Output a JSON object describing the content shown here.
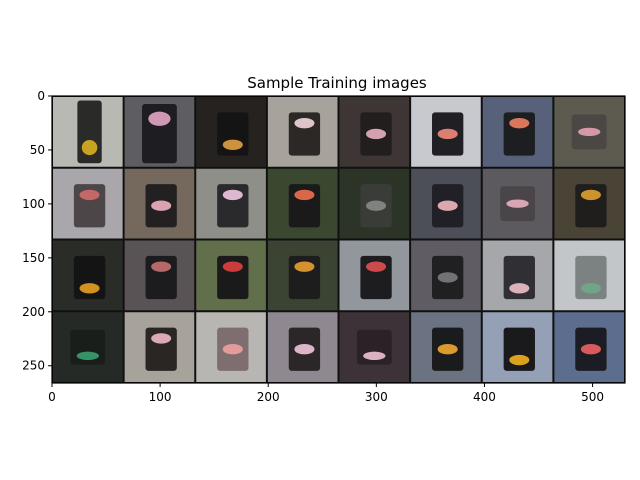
{
  "chart_data": {
    "type": "image_grid",
    "title": "Sample Training images",
    "xlabel": "",
    "ylabel": "",
    "xlim": [
      0,
      530
    ],
    "ylim": [
      266,
      0
    ],
    "x_ticks": [
      0,
      100,
      200,
      300,
      400,
      500
    ],
    "y_ticks": [
      0,
      50,
      100,
      150,
      200,
      250
    ],
    "grid": false,
    "rows": 4,
    "cols": 8,
    "tiles": [
      {
        "bg": "#b9b9b4",
        "body": "#2a2a28",
        "light": "#d8b020",
        "pos": "bottom",
        "shape": "vertical"
      },
      {
        "bg": "#5e5e62",
        "body": "#1e1e22",
        "light": "#e2a6c6",
        "pos": "top",
        "shape": "tall"
      },
      {
        "bg": "#26221f",
        "body": "#151414",
        "light": "#e0a040",
        "pos": "bottom",
        "shape": "box"
      },
      {
        "bg": "#a7a39c",
        "body": "#2b2826",
        "light": "#f3d6de",
        "pos": "top",
        "shape": "box"
      },
      {
        "bg": "#3e3635",
        "body": "#221e1d",
        "light": "#e8b0c0",
        "pos": "middle",
        "shape": "box"
      },
      {
        "bg": "#c8c8cf",
        "body": "#202024",
        "light": "#ef8a7a",
        "pos": "middle",
        "shape": "box"
      },
      {
        "bg": "#57617a",
        "body": "#1d1e22",
        "light": "#ef8060",
        "pos": "top",
        "shape": "box"
      },
      {
        "bg": "#5d5b4f",
        "body": "#4a4744",
        "light": "#e3a1b4",
        "pos": "middle",
        "shape": "blob"
      },
      {
        "bg": "#a9a7ab",
        "body": "#4c4649",
        "light": "#d06a6a",
        "pos": "top",
        "shape": "box"
      },
      {
        "bg": "#75695e",
        "body": "#222021",
        "light": "#f0b0c0",
        "pos": "middle",
        "shape": "box"
      },
      {
        "bg": "#8f8f8a",
        "body": "#2a2a2c",
        "light": "#f2c8e2",
        "pos": "top",
        "shape": "box"
      },
      {
        "bg": "#3a4830",
        "body": "#1a1a1a",
        "light": "#f07050",
        "pos": "top",
        "shape": "box"
      },
      {
        "bg": "#2c3428",
        "body": "#3a3c38",
        "light": "#8a8a88",
        "pos": "middle",
        "shape": "box"
      },
      {
        "bg": "#4c4e58",
        "body": "#202026",
        "light": "#f2b6be",
        "pos": "middle",
        "shape": "box"
      },
      {
        "bg": "#5c5a5e",
        "body": "#4a4549",
        "light": "#e8b0c0",
        "pos": "middle",
        "shape": "blob"
      },
      {
        "bg": "#4a4436",
        "body": "#1f1e1c",
        "light": "#e0a030",
        "pos": "top",
        "shape": "box"
      },
      {
        "bg": "#2a2c28",
        "body": "#141414",
        "light": "#e8a020",
        "pos": "bottom",
        "shape": "box"
      },
      {
        "bg": "#5a5356",
        "body": "#1c1b1d",
        "light": "#c87070",
        "pos": "top",
        "shape": "box"
      },
      {
        "bg": "#61704a",
        "body": "#1a1a1a",
        "light": "#e04040",
        "pos": "top",
        "shape": "box"
      },
      {
        "bg": "#3b4433",
        "body": "#1c1d1c",
        "light": "#e8a030",
        "pos": "top",
        "shape": "box"
      },
      {
        "bg": "#92979d",
        "body": "#1d1d20",
        "light": "#e05050",
        "pos": "top",
        "shape": "box"
      },
      {
        "bg": "#5f5d63",
        "body": "#201f22",
        "light": "#7a7a80",
        "pos": "middle",
        "shape": "box"
      },
      {
        "bg": "#a6a7ab",
        "body": "#303034",
        "light": "#f0c0c8",
        "pos": "bottom",
        "shape": "box"
      },
      {
        "bg": "#c3c6c8",
        "body": "#7c8282",
        "light": "#6fa88a",
        "pos": "bottom",
        "shape": "box"
      },
      {
        "bg": "#262a26",
        "body": "#1a1e1b",
        "light": "#3aa070",
        "pos": "bottom",
        "shape": "blob"
      },
      {
        "bg": "#a8a39a",
        "body": "#2a2624",
        "light": "#f2b8c8",
        "pos": "top",
        "shape": "box"
      },
      {
        "bg": "#b7b6b2",
        "body": "#7f6e70",
        "light": "#f0a0a0",
        "pos": "middle",
        "shape": "box"
      },
      {
        "bg": "#8f8890",
        "body": "#2b2627",
        "light": "#f2c4dc",
        "pos": "middle",
        "shape": "box"
      },
      {
        "bg": "#3c3238",
        "body": "#2a2226",
        "light": "#f0c2d4",
        "pos": "bottom",
        "shape": "blob"
      },
      {
        "bg": "#6b7383",
        "body": "#1a1b1d",
        "light": "#f0a830",
        "pos": "middle",
        "shape": "box"
      },
      {
        "bg": "#93a0b6",
        "body": "#1a1a1c",
        "light": "#f0b020",
        "pos": "bottom",
        "shape": "box"
      },
      {
        "bg": "#5c6d8e",
        "body": "#1c1d24",
        "light": "#f06060",
        "pos": "middle",
        "shape": "box"
      }
    ]
  }
}
